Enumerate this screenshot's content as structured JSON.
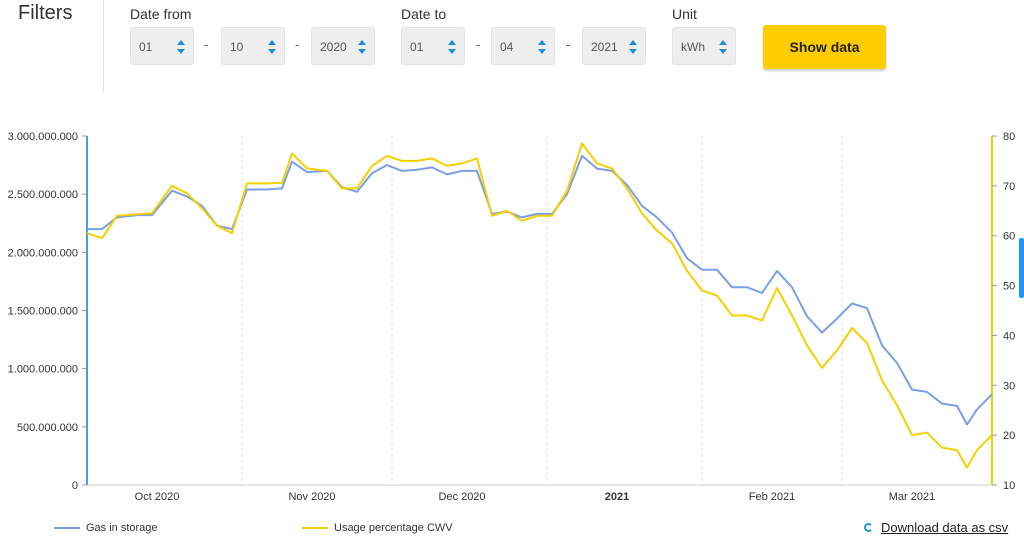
{
  "filters": {
    "title": "Filters",
    "date_from": {
      "label": "Date from",
      "day": "01",
      "month": "10",
      "year": "2020"
    },
    "date_to": {
      "label": "Date to",
      "day": "01",
      "month": "04",
      "year": "2021"
    },
    "unit": {
      "label": "Unit",
      "value": "kWh"
    },
    "separator": "-",
    "show_button": "Show data"
  },
  "colors": {
    "gas": "#7b9fe6",
    "usage": "#f5d000",
    "accent": "#ffcc00",
    "left_axis": "#4c9be8"
  },
  "download": {
    "label": "Download data as csv",
    "icon": "refresh-spinner-icon"
  },
  "chart_data": {
    "type": "line",
    "x_start": "2020-10-01",
    "x_end": "2021-03-31",
    "month_ticks": [
      {
        "date": "2020-10-15",
        "label": "Oct 2020",
        "bold": false
      },
      {
        "date": "2020-11-15",
        "label": "Nov 2020",
        "bold": false
      },
      {
        "date": "2020-12-15",
        "label": "Dec 2020",
        "bold": false
      },
      {
        "date": "2021-01-15",
        "label": "2021",
        "bold": true
      },
      {
        "date": "2021-02-15",
        "label": "Feb 2021",
        "bold": false
      },
      {
        "date": "2021-03-15",
        "label": "Mar 2021",
        "bold": false
      }
    ],
    "month_boundaries": [
      "2020-11-01",
      "2020-12-01",
      "2021-01-01",
      "2021-02-01",
      "2021-03-01"
    ],
    "y_left": {
      "min": 0,
      "max": 3000000000,
      "ticks": [
        0,
        500000000,
        1000000000,
        1500000000,
        2000000000,
        2500000000,
        3000000000
      ],
      "tick_labels": [
        "0",
        "500.000.000",
        "1.000.000.000",
        "1.500.000.000",
        "2.000.000.000",
        "2.500.000.000",
        "3.000.000.000"
      ]
    },
    "y_right": {
      "min": 10,
      "max": 80,
      "ticks": [
        10,
        20,
        30,
        40,
        50,
        60,
        70,
        80
      ],
      "tick_labels": [
        "10",
        "20",
        "30",
        "40",
        "50",
        "60",
        "70",
        "80"
      ]
    },
    "series": [
      {
        "name": "Gas in storage",
        "axis": "left",
        "points": [
          [
            "2020-10-01",
            2200000000
          ],
          [
            "2020-10-04",
            2200000000
          ],
          [
            "2020-10-07",
            2300000000
          ],
          [
            "2020-10-11",
            2320000000
          ],
          [
            "2020-10-14",
            2320000000
          ],
          [
            "2020-10-18",
            2530000000
          ],
          [
            "2020-10-21",
            2480000000
          ],
          [
            "2020-10-24",
            2400000000
          ],
          [
            "2020-10-27",
            2230000000
          ],
          [
            "2020-10-30",
            2200000000
          ],
          [
            "2020-11-02",
            2540000000
          ],
          [
            "2020-11-06",
            2540000000
          ],
          [
            "2020-11-09",
            2550000000
          ],
          [
            "2020-11-11",
            2780000000
          ],
          [
            "2020-11-14",
            2690000000
          ],
          [
            "2020-11-18",
            2700000000
          ],
          [
            "2020-11-21",
            2560000000
          ],
          [
            "2020-11-24",
            2520000000
          ],
          [
            "2020-11-27",
            2680000000
          ],
          [
            "2020-11-30",
            2750000000
          ],
          [
            "2020-12-03",
            2700000000
          ],
          [
            "2020-12-06",
            2710000000
          ],
          [
            "2020-12-09",
            2730000000
          ],
          [
            "2020-12-12",
            2670000000
          ],
          [
            "2020-12-15",
            2700000000
          ],
          [
            "2020-12-18",
            2700000000
          ],
          [
            "2020-12-21",
            2330000000
          ],
          [
            "2020-12-24",
            2350000000
          ],
          [
            "2020-12-27",
            2300000000
          ],
          [
            "2020-12-30",
            2330000000
          ],
          [
            "2021-01-02",
            2330000000
          ],
          [
            "2021-01-05",
            2500000000
          ],
          [
            "2021-01-08",
            2830000000
          ],
          [
            "2021-01-11",
            2720000000
          ],
          [
            "2021-01-14",
            2700000000
          ],
          [
            "2021-01-17",
            2580000000
          ],
          [
            "2021-01-20",
            2400000000
          ],
          [
            "2021-01-23",
            2300000000
          ],
          [
            "2021-01-26",
            2170000000
          ],
          [
            "2021-01-29",
            1950000000
          ],
          [
            "2021-02-01",
            1850000000
          ],
          [
            "2021-02-04",
            1850000000
          ],
          [
            "2021-02-07",
            1700000000
          ],
          [
            "2021-02-10",
            1700000000
          ],
          [
            "2021-02-13",
            1650000000
          ],
          [
            "2021-02-16",
            1840000000
          ],
          [
            "2021-02-19",
            1700000000
          ],
          [
            "2021-02-22",
            1450000000
          ],
          [
            "2021-02-25",
            1310000000
          ],
          [
            "2021-02-28",
            1430000000
          ],
          [
            "2021-03-03",
            1560000000
          ],
          [
            "2021-03-06",
            1520000000
          ],
          [
            "2021-03-09",
            1200000000
          ],
          [
            "2021-03-12",
            1050000000
          ],
          [
            "2021-03-15",
            820000000
          ],
          [
            "2021-03-18",
            800000000
          ],
          [
            "2021-03-21",
            700000000
          ],
          [
            "2021-03-24",
            680000000
          ],
          [
            "2021-03-26",
            520000000
          ],
          [
            "2021-03-28",
            650000000
          ],
          [
            "2021-03-31",
            780000000
          ]
        ]
      },
      {
        "name": "Usage percentage CWV",
        "axis": "right",
        "points": [
          [
            "2020-10-01",
            60.5
          ],
          [
            "2020-10-04",
            59.5
          ],
          [
            "2020-10-07",
            64
          ],
          [
            "2020-10-11",
            64.3
          ],
          [
            "2020-10-14",
            64.5
          ],
          [
            "2020-10-18",
            70
          ],
          [
            "2020-10-21",
            68.5
          ],
          [
            "2020-10-24",
            65.5
          ],
          [
            "2020-10-27",
            62
          ],
          [
            "2020-10-30",
            60.5
          ],
          [
            "2020-11-02",
            70.5
          ],
          [
            "2020-11-06",
            70.5
          ],
          [
            "2020-11-09",
            70.6
          ],
          [
            "2020-11-11",
            76.5
          ],
          [
            "2020-11-14",
            73.5
          ],
          [
            "2020-11-18",
            73
          ],
          [
            "2020-11-21",
            69.5
          ],
          [
            "2020-11-24",
            69.5
          ],
          [
            "2020-11-27",
            74
          ],
          [
            "2020-11-30",
            76
          ],
          [
            "2020-12-03",
            75
          ],
          [
            "2020-12-06",
            75
          ],
          [
            "2020-12-09",
            75.5
          ],
          [
            "2020-12-12",
            74
          ],
          [
            "2020-12-15",
            74.5
          ],
          [
            "2020-12-18",
            75.5
          ],
          [
            "2020-12-21",
            64
          ],
          [
            "2020-12-24",
            65
          ],
          [
            "2020-12-27",
            63
          ],
          [
            "2020-12-30",
            64
          ],
          [
            "2021-01-02",
            64
          ],
          [
            "2021-01-05",
            69
          ],
          [
            "2021-01-08",
            78.5
          ],
          [
            "2021-01-11",
            74.5
          ],
          [
            "2021-01-14",
            73.5
          ],
          [
            "2021-01-17",
            69.5
          ],
          [
            "2021-01-20",
            64.5
          ],
          [
            "2021-01-23",
            61
          ],
          [
            "2021-01-26",
            58.5
          ],
          [
            "2021-01-29",
            53
          ],
          [
            "2021-02-01",
            49
          ],
          [
            "2021-02-04",
            48
          ],
          [
            "2021-02-07",
            44
          ],
          [
            "2021-02-10",
            44
          ],
          [
            "2021-02-13",
            43
          ],
          [
            "2021-02-16",
            49.5
          ],
          [
            "2021-02-19",
            44
          ],
          [
            "2021-02-22",
            38
          ],
          [
            "2021-02-25",
            33.5
          ],
          [
            "2021-02-28",
            37
          ],
          [
            "2021-03-03",
            41.5
          ],
          [
            "2021-03-06",
            38.5
          ],
          [
            "2021-03-09",
            31
          ],
          [
            "2021-03-12",
            26
          ],
          [
            "2021-03-15",
            20
          ],
          [
            "2021-03-18",
            20.5
          ],
          [
            "2021-03-21",
            17.5
          ],
          [
            "2021-03-24",
            17
          ],
          [
            "2021-03-26",
            13.5
          ],
          [
            "2021-03-28",
            17
          ],
          [
            "2021-03-31",
            20
          ]
        ]
      }
    ]
  }
}
